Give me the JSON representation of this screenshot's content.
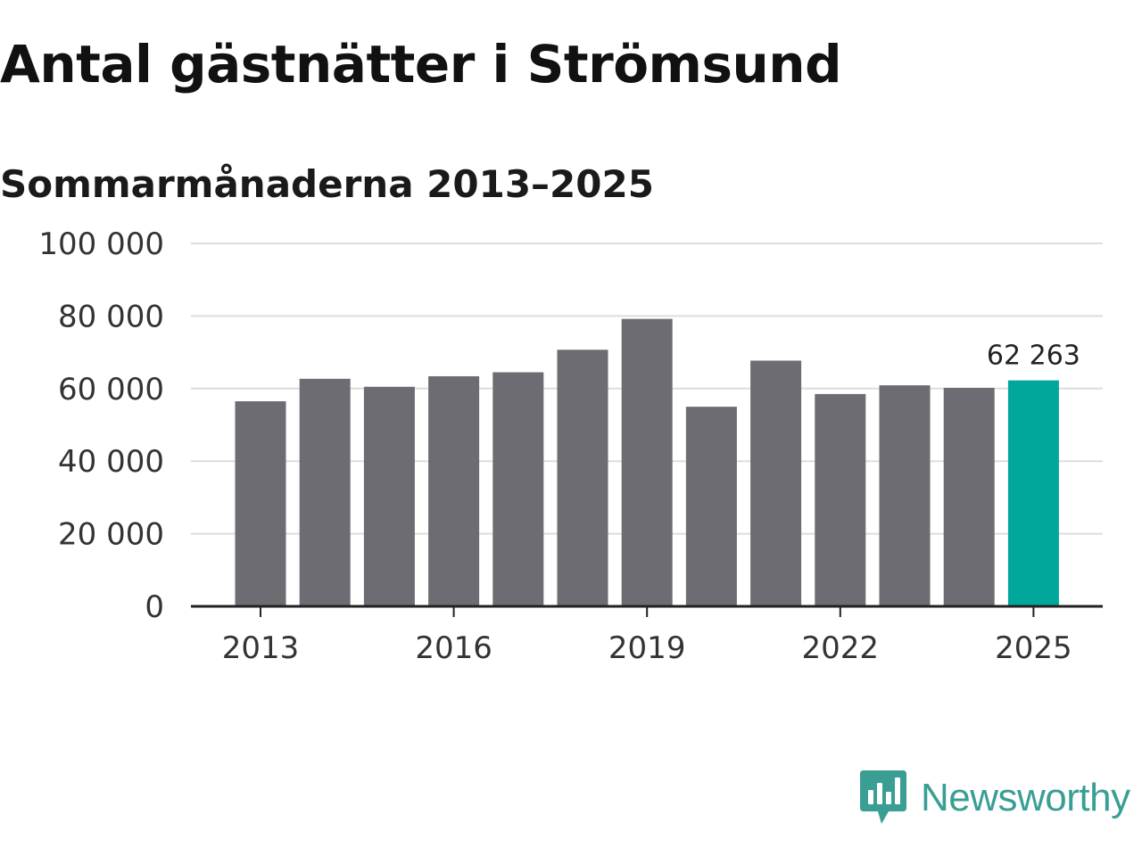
{
  "title": "Antal gästnätter i Strömsund",
  "subtitle": "Sommarmånaderna 2013–2025",
  "brand": {
    "name": "Newsworthy",
    "color": "#3a9e94",
    "icon": "newsworthy-logo-icon"
  },
  "colors": {
    "bar": "#6d6c72",
    "highlight": "#00a79a",
    "grid": "#dddddd",
    "axis": "#222222"
  },
  "chart_data": {
    "type": "bar",
    "title": "Antal gästnätter i Strömsund",
    "subtitle": "Sommarmånaderna 2013–2025",
    "xlabel": "",
    "ylabel": "",
    "categories": [
      "2013",
      "2014",
      "2015",
      "2016",
      "2017",
      "2018",
      "2019",
      "2020",
      "2021",
      "2022",
      "2023",
      "2024",
      "2025"
    ],
    "values": [
      56500,
      62700,
      60500,
      63400,
      64500,
      70700,
      79200,
      55000,
      67700,
      58500,
      60900,
      60200,
      62263
    ],
    "highlight_index": 12,
    "x_tick_labels": [
      "2013",
      "2016",
      "2019",
      "2022",
      "2025"
    ],
    "y_ticks": [
      0,
      20000,
      40000,
      60000,
      80000,
      100000
    ],
    "y_tick_labels": [
      "0",
      "20 000",
      "40 000",
      "60 000",
      "80 000",
      "100 000"
    ],
    "ylim": [
      0,
      100000
    ],
    "grid": true,
    "data_labels": [
      {
        "index": 12,
        "text": "62 263"
      }
    ]
  }
}
